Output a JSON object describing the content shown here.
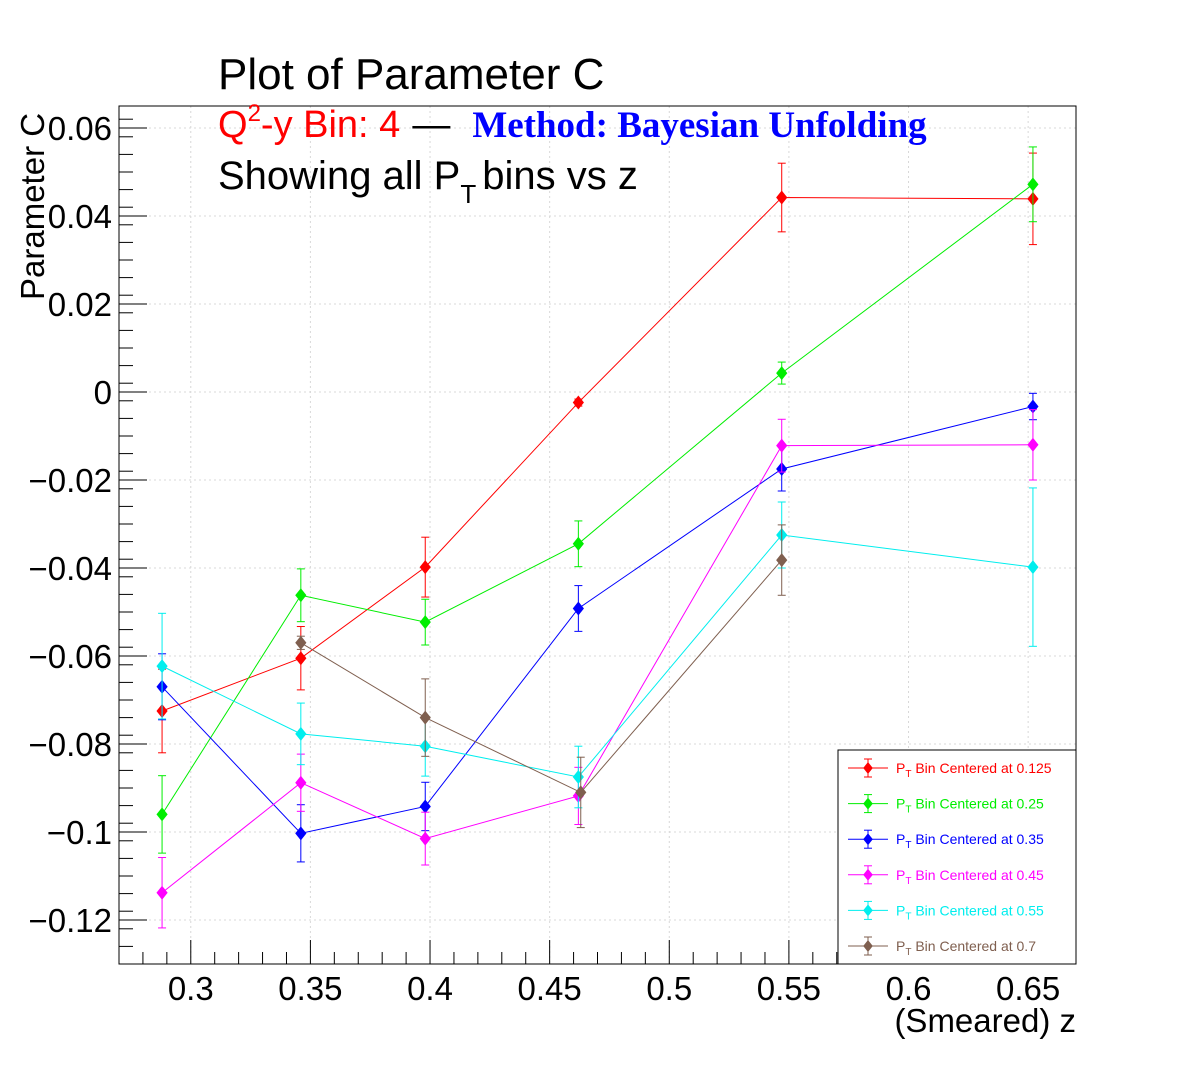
{
  "title": {
    "main": "Plot of Parameter C",
    "q2_prefix": "Q",
    "q2_sup": "2",
    "q2_suffix": "-y Bin: 4",
    "separator": "—",
    "method": "Method: Bayesian Unfolding",
    "showing_prefix": "Showing all P",
    "showing_sub": "T",
    "showing_suffix": "bins vs z"
  },
  "colors": {
    "red": "#ff0000",
    "green": "#00ee00",
    "blue": "#0000ff",
    "magenta": "#ff00ff",
    "cyan": "#00eeee",
    "brown": "#7f5f4f",
    "grid": "#d8d8d8"
  },
  "chart_data": {
    "type": "scatter",
    "xlabel": "(Smeared) z",
    "ylabel": "Parameter C",
    "xlim": [
      0.27,
      0.67
    ],
    "ylim": [
      -0.13,
      0.065
    ],
    "grid": true,
    "legend_position": "bottom-right",
    "xticks": [
      0.3,
      0.35,
      0.4,
      0.45,
      0.5,
      0.55,
      0.6,
      0.65
    ],
    "xtick_labels": [
      "0.3",
      "0.35",
      "0.4",
      "0.45",
      "0.5",
      "0.55",
      "0.6",
      "0.65"
    ],
    "yticks": [
      0.06,
      0.04,
      0.02,
      0,
      -0.02,
      -0.04,
      -0.06,
      -0.08,
      -0.1,
      -0.12
    ],
    "ytick_labels": [
      "0.06",
      "0.04",
      "0.02",
      "0",
      "−0.02",
      "−0.04",
      "−0.06",
      "−0.08",
      "−0.1",
      "−0.12"
    ],
    "series": [
      {
        "name": "P_T Bin Centered at 0.125",
        "legend_prefix": "P",
        "legend_sub": "T",
        "legend_suffix": " Bin Centered at 0.125",
        "color": "#ff0000",
        "x": [
          0.288,
          0.346,
          0.398,
          0.462,
          0.547,
          0.652
        ],
        "y": [
          -0.0725,
          -0.0605,
          -0.0398,
          -0.0024,
          0.0442,
          0.0439
        ],
        "err": [
          0.0095,
          0.0072,
          0.0068,
          0.0008,
          0.0078,
          0.0104
        ]
      },
      {
        "name": "P_T Bin Centered at 0.25",
        "legend_prefix": "P",
        "legend_sub": "T",
        "legend_suffix": " Bin Centered at 0.25",
        "color": "#00ee00",
        "x": [
          0.288,
          0.346,
          0.398,
          0.462,
          0.547,
          0.652
        ],
        "y": [
          -0.096,
          -0.0462,
          -0.0523,
          -0.0345,
          0.0043,
          0.0472
        ],
        "err": [
          0.0088,
          0.006,
          0.0052,
          0.0052,
          0.0025,
          0.0085
        ]
      },
      {
        "name": "P_T Bin Centered at 0.35",
        "legend_prefix": "P",
        "legend_sub": "T",
        "legend_suffix": " Bin Centered at 0.35",
        "color": "#0000ff",
        "x": [
          0.288,
          0.346,
          0.398,
          0.462,
          0.547,
          0.652
        ],
        "y": [
          -0.067,
          -0.1003,
          -0.0942,
          -0.0492,
          -0.0175,
          -0.0033
        ],
        "err": [
          0.0075,
          0.0065,
          0.0055,
          0.0052,
          0.005,
          0.003
        ]
      },
      {
        "name": "P_T Bin Centered at 0.45",
        "legend_prefix": "P",
        "legend_sub": "T",
        "legend_suffix": " Bin Centered at 0.45",
        "color": "#ff00ff",
        "x": [
          0.288,
          0.346,
          0.398,
          0.462,
          0.547,
          0.652
        ],
        "y": [
          -0.1138,
          -0.0888,
          -0.1015,
          -0.0918,
          -0.0122,
          -0.012
        ],
        "err": [
          0.008,
          0.0065,
          0.006,
          0.0065,
          0.006,
          0.008
        ]
      },
      {
        "name": "P_T Bin Centered at 0.55",
        "legend_prefix": "P",
        "legend_sub": "T",
        "legend_suffix": " Bin Centered at 0.55",
        "color": "#00eeee",
        "x": [
          0.288,
          0.346,
          0.398,
          0.462,
          0.547,
          0.652
        ],
        "y": [
          -0.0623,
          -0.0777,
          -0.0805,
          -0.0875,
          -0.0325,
          -0.0398
        ],
        "err": [
          0.012,
          0.007,
          0.0068,
          0.007,
          0.0075,
          0.018
        ]
      },
      {
        "name": "P_T Bin Centered at 0.7",
        "legend_prefix": "P",
        "legend_sub": "T",
        "legend_suffix": " Bin Centered at 0.7",
        "color": "#7f5f4f",
        "x": [
          0.346,
          0.398,
          0.463,
          0.547
        ],
        "y": [
          -0.057,
          -0.074,
          -0.091,
          -0.0382
        ],
        "err": [
          0.0015,
          0.0088,
          0.008,
          0.008
        ]
      }
    ]
  }
}
